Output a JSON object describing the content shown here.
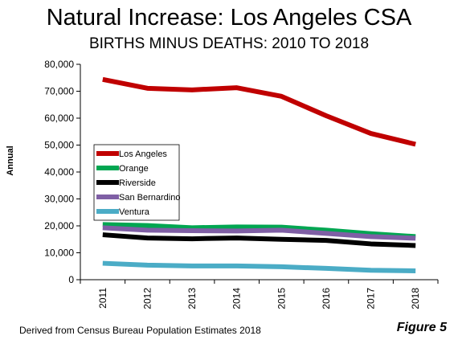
{
  "chart_data": {
    "type": "line",
    "title": "Natural Increase: Los Angeles CSA",
    "subtitle": "BIRTHS MINUS DEATHS: 2010 TO 2018",
    "xlabel": "",
    "ylabel": "Annual",
    "x": [
      "2011",
      "2012",
      "2013",
      "2014",
      "2015",
      "2016",
      "2017",
      "2018"
    ],
    "ylim": [
      0,
      80000
    ],
    "yticks": [
      0,
      10000,
      20000,
      30000,
      40000,
      50000,
      60000,
      70000,
      80000
    ],
    "ytick_labels": [
      "0",
      "10,000",
      "20,000",
      "30,000",
      "40,000",
      "50,000",
      "60,000",
      "70,000",
      "80,000"
    ],
    "grid": false,
    "legend_position": "left",
    "series": [
      {
        "name": "Los Angeles",
        "color": "#c00000",
        "values": [
          74400,
          71100,
          70500,
          71300,
          68100,
          60900,
          54300,
          50300
        ]
      },
      {
        "name": "Orange",
        "color": "#00a651",
        "values": [
          20500,
          20100,
          19300,
          19600,
          19500,
          18400,
          17100,
          16000
        ]
      },
      {
        "name": "Riverside",
        "color": "#000000",
        "values": [
          16700,
          15500,
          15200,
          15500,
          15000,
          14600,
          13300,
          12700
        ]
      },
      {
        "name": "San Bernardino",
        "color": "#7f5fa5",
        "values": [
          19300,
          18400,
          18200,
          18100,
          18400,
          17200,
          16000,
          15400
        ]
      },
      {
        "name": "Ventura",
        "color": "#4bacc6",
        "values": [
          6100,
          5400,
          5100,
          5100,
          4800,
          4200,
          3500,
          3300
        ]
      }
    ]
  },
  "footer": {
    "source": "Derived from Census Bureau Population Estimates 2018",
    "figure_label": "Figure 5"
  }
}
